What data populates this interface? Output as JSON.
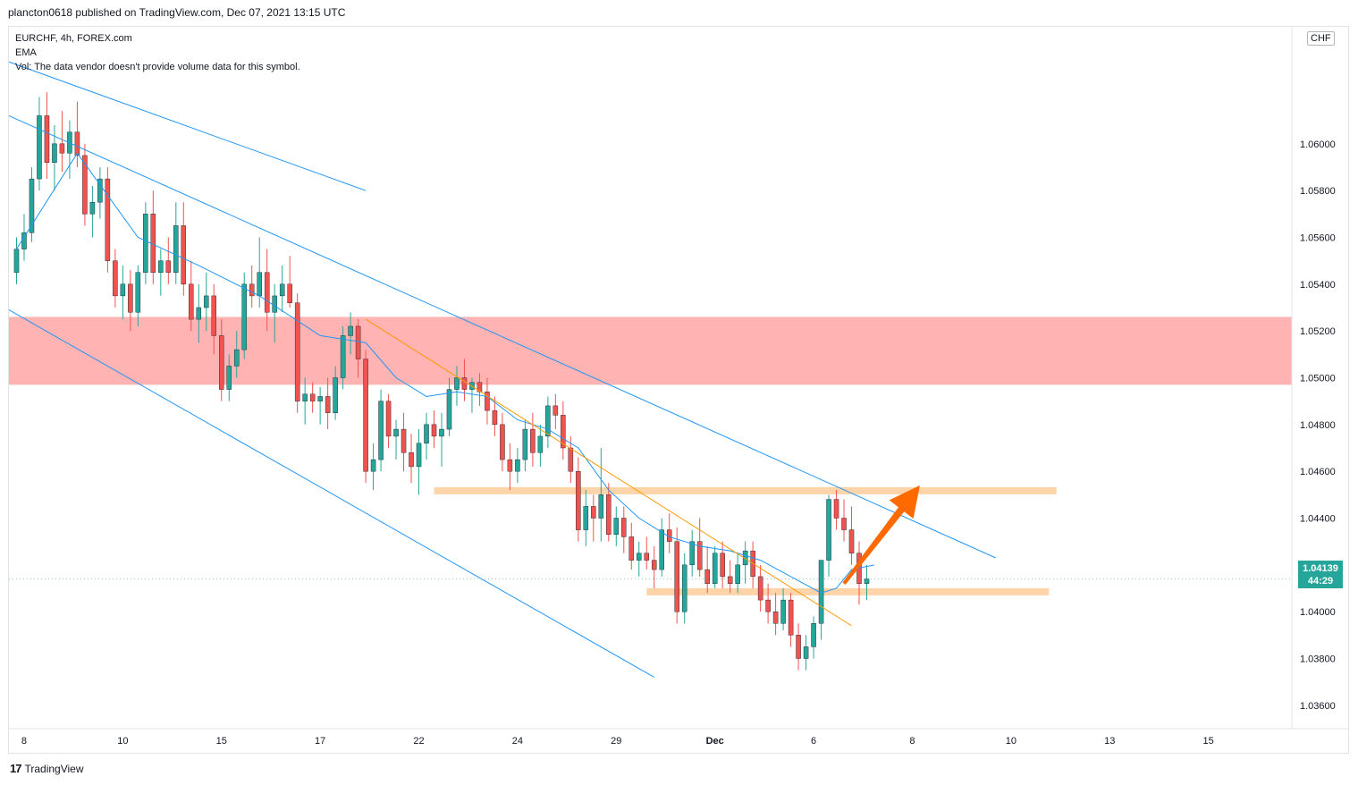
{
  "header": {
    "publisher_line": "plancton0618 published on TradingView.com, Dec 07, 2021 13:15 UTC"
  },
  "legend": {
    "symbol_line": "EURCHF, 4h, FOREX.com",
    "ema_label": "EMA",
    "vol_line": "Vol: The data vendor doesn't provide volume data for this symbol."
  },
  "currency_badge": "CHF",
  "last_price": {
    "value": "1.04139",
    "countdown": "44:29"
  },
  "brand": {
    "logo": "17",
    "name": "TradingView"
  },
  "colors": {
    "up": "#26a69a",
    "down": "#ef5350",
    "ema": "#2196f3",
    "zone": "#ffb3b3",
    "level": "#ffcc99",
    "arrow": "#ff6a00"
  },
  "chart_data": {
    "type": "candlestick",
    "title": "EURCHF, 4h, FOREX.com",
    "ylim": [
      1.035,
      1.065
    ],
    "y_ticks": [
      "1.03600",
      "1.03800",
      "1.04000",
      "1.04200",
      "1.04400",
      "1.04600",
      "1.04800",
      "1.05000",
      "1.05200",
      "1.05400",
      "1.05600",
      "1.05800",
      "1.06000"
    ],
    "x_ticks": [
      {
        "label": "8",
        "index": 1
      },
      {
        "label": "10",
        "index": 14
      },
      {
        "label": "15",
        "index": 27
      },
      {
        "label": "17",
        "index": 40
      },
      {
        "label": "22",
        "index": 53
      },
      {
        "label": "24",
        "index": 66
      },
      {
        "label": "29",
        "index": 79
      },
      {
        "label": "Dec",
        "index": 92
      },
      {
        "label": "6",
        "index": 105
      },
      {
        "label": "8",
        "index": 118
      },
      {
        "label": "10",
        "index": 131
      },
      {
        "label": "13",
        "index": 144
      },
      {
        "label": "15",
        "index": 157
      }
    ],
    "index_range": [
      -1,
      168
    ],
    "candles": [
      [
        1.0545,
        1.056,
        1.054,
        1.0555
      ],
      [
        1.0555,
        1.057,
        1.055,
        1.0562
      ],
      [
        1.0562,
        1.059,
        1.0558,
        1.0585
      ],
      [
        1.0585,
        1.062,
        1.058,
        1.0612
      ],
      [
        1.0612,
        1.0622,
        1.0585,
        1.0592
      ],
      [
        1.0592,
        1.0608,
        1.058,
        1.06
      ],
      [
        1.06,
        1.0614,
        1.0588,
        1.0596
      ],
      [
        1.0596,
        1.061,
        1.0585,
        1.0605
      ],
      [
        1.0605,
        1.0618,
        1.059,
        1.0595
      ],
      [
        1.0595,
        1.06,
        1.0565,
        1.057
      ],
      [
        1.057,
        1.0582,
        1.056,
        1.0575
      ],
      [
        1.0575,
        1.059,
        1.0568,
        1.0585
      ],
      [
        1.0585,
        1.059,
        1.0545,
        1.055
      ],
      [
        1.055,
        1.0555,
        1.053,
        1.0535
      ],
      [
        1.0535,
        1.0548,
        1.0525,
        1.054
      ],
      [
        1.054,
        1.0546,
        1.052,
        1.0528
      ],
      [
        1.0528,
        1.0548,
        1.0522,
        1.0545
      ],
      [
        1.0545,
        1.0575,
        1.054,
        1.057
      ],
      [
        1.057,
        1.058,
        1.054,
        1.0545
      ],
      [
        1.0545,
        1.0555,
        1.0535,
        1.055
      ],
      [
        1.055,
        1.056,
        1.054,
        1.0545
      ],
      [
        1.0545,
        1.0575,
        1.054,
        1.0565
      ],
      [
        1.0565,
        1.0575,
        1.0535,
        1.054
      ],
      [
        1.054,
        1.055,
        1.052,
        1.0525
      ],
      [
        1.0525,
        1.054,
        1.0515,
        1.053
      ],
      [
        1.053,
        1.0545,
        1.052,
        1.0535
      ],
      [
        1.0535,
        1.054,
        1.051,
        1.0518
      ],
      [
        1.0518,
        1.0525,
        1.049,
        1.0495
      ],
      [
        1.0495,
        1.051,
        1.049,
        1.0505
      ],
      [
        1.0505,
        1.052,
        1.05,
        1.0512
      ],
      [
        1.0512,
        1.0545,
        1.0508,
        1.054
      ],
      [
        1.054,
        1.0548,
        1.053,
        1.0535
      ],
      [
        1.0535,
        1.056,
        1.053,
        1.0545
      ],
      [
        1.0545,
        1.0555,
        1.052,
        1.0528
      ],
      [
        1.0528,
        1.054,
        1.0515,
        1.0535
      ],
      [
        1.0535,
        1.0548,
        1.0528,
        1.054
      ],
      [
        1.054,
        1.0552,
        1.053,
        1.0532
      ],
      [
        1.0532,
        1.0536,
        1.0485,
        1.049
      ],
      [
        1.049,
        1.05,
        1.048,
        1.0493
      ],
      [
        1.0493,
        1.0498,
        1.0485,
        1.049
      ],
      [
        1.049,
        1.0496,
        1.048,
        1.0492
      ],
      [
        1.0492,
        1.05,
        1.0478,
        1.0485
      ],
      [
        1.0485,
        1.0505,
        1.0482,
        1.05
      ],
      [
        1.05,
        1.0522,
        1.0495,
        1.0518
      ],
      [
        1.0518,
        1.0528,
        1.051,
        1.0522
      ],
      [
        1.0522,
        1.0525,
        1.05,
        1.0508
      ],
      [
        1.0508,
        1.0512,
        1.0455,
        1.046
      ],
      [
        1.046,
        1.0472,
        1.0452,
        1.0465
      ],
      [
        1.0465,
        1.0495,
        1.046,
        1.049
      ],
      [
        1.049,
        1.0493,
        1.047,
        1.0475
      ],
      [
        1.0475,
        1.0482,
        1.0465,
        1.0478
      ],
      [
        1.0478,
        1.0485,
        1.046,
        1.0468
      ],
      [
        1.0468,
        1.0476,
        1.0455,
        1.0462
      ],
      [
        1.0462,
        1.0478,
        1.045,
        1.0472
      ],
      [
        1.0472,
        1.0485,
        1.0465,
        1.048
      ],
      [
        1.048,
        1.0486,
        1.047,
        1.0475
      ],
      [
        1.0475,
        1.0485,
        1.0462,
        1.0478
      ],
      [
        1.0478,
        1.05,
        1.0475,
        1.0495
      ],
      [
        1.0495,
        1.0505,
        1.0488,
        1.05
      ],
      [
        1.05,
        1.0508,
        1.049,
        1.0495
      ],
      [
        1.0495,
        1.05,
        1.0485,
        1.0498
      ],
      [
        1.0498,
        1.0502,
        1.0488,
        1.0494
      ],
      [
        1.0494,
        1.05,
        1.048,
        1.0486
      ],
      [
        1.0486,
        1.0492,
        1.0475,
        1.048
      ],
      [
        1.048,
        1.0485,
        1.046,
        1.0465
      ],
      [
        1.0465,
        1.0472,
        1.0452,
        1.046
      ],
      [
        1.046,
        1.047,
        1.0455,
        1.0465
      ],
      [
        1.0465,
        1.0482,
        1.046,
        1.0478
      ],
      [
        1.0478,
        1.0485,
        1.0462,
        1.0468
      ],
      [
        1.0468,
        1.048,
        1.0462,
        1.0475
      ],
      [
        1.0475,
        1.0492,
        1.047,
        1.0488
      ],
      [
        1.0488,
        1.0493,
        1.0478,
        1.0484
      ],
      [
        1.0484,
        1.049,
        1.0465,
        1.047
      ],
      [
        1.047,
        1.0475,
        1.0455,
        1.046
      ],
      [
        1.046,
        1.0466,
        1.043,
        1.0435
      ],
      [
        1.0435,
        1.0452,
        1.0428,
        1.0445
      ],
      [
        1.0445,
        1.045,
        1.043,
        1.044
      ],
      [
        1.044,
        1.047,
        1.043,
        1.045
      ],
      [
        1.045,
        1.0455,
        1.043,
        1.0433
      ],
      [
        1.0433,
        1.0445,
        1.0428,
        1.044
      ],
      [
        1.044,
        1.0445,
        1.0425,
        1.0432
      ],
      [
        1.0432,
        1.0438,
        1.0418,
        1.0422
      ],
      [
        1.0422,
        1.043,
        1.0415,
        1.0425
      ],
      [
        1.0425,
        1.0432,
        1.0418,
        1.0422
      ],
      [
        1.0422,
        1.0428,
        1.041,
        1.0418
      ],
      [
        1.0418,
        1.044,
        1.0415,
        1.0435
      ],
      [
        1.0435,
        1.0442,
        1.0425,
        1.043
      ],
      [
        1.043,
        1.0436,
        1.0395,
        1.04
      ],
      [
        1.04,
        1.0425,
        1.0395,
        1.042
      ],
      [
        1.042,
        1.0435,
        1.0415,
        1.043
      ],
      [
        1.043,
        1.044,
        1.0415,
        1.0418
      ],
      [
        1.0418,
        1.0428,
        1.0408,
        1.0412
      ],
      [
        1.0412,
        1.0428,
        1.041,
        1.0425
      ],
      [
        1.0425,
        1.043,
        1.041,
        1.0415
      ],
      [
        1.0415,
        1.0422,
        1.0408,
        1.0412
      ],
      [
        1.0412,
        1.0425,
        1.0408,
        1.042
      ],
      [
        1.042,
        1.043,
        1.0412,
        1.0426
      ],
      [
        1.0426,
        1.043,
        1.041,
        1.0415
      ],
      [
        1.0415,
        1.042,
        1.04,
        1.0405
      ],
      [
        1.0405,
        1.0412,
        1.0395,
        1.04
      ],
      [
        1.04,
        1.0408,
        1.039,
        1.0395
      ],
      [
        1.0395,
        1.041,
        1.0392,
        1.0405
      ],
      [
        1.0405,
        1.0408,
        1.0385,
        1.039
      ],
      [
        1.039,
        1.0395,
        1.0375,
        1.038
      ],
      [
        1.038,
        1.039,
        1.0375,
        1.0385
      ],
      [
        1.0385,
        1.0398,
        1.038,
        1.0395
      ],
      [
        1.0395,
        1.042,
        1.0388,
        1.0422
      ],
      [
        1.0422,
        1.045,
        1.0415,
        1.0448
      ],
      [
        1.0448,
        1.0452,
        1.0435,
        1.044
      ],
      [
        1.044,
        1.0448,
        1.043,
        1.0435
      ],
      [
        1.0435,
        1.0445,
        1.042,
        1.0425
      ],
      [
        1.0425,
        1.043,
        1.0403,
        1.0412
      ],
      [
        1.0412,
        1.042,
        1.0405,
        1.0414
      ]
    ],
    "ema": [
      [
        0,
        1.0555
      ],
      [
        8,
        1.0596
      ],
      [
        16,
        1.056
      ],
      [
        24,
        1.0548
      ],
      [
        32,
        1.0535
      ],
      [
        40,
        1.0518
      ],
      [
        46,
        1.0515
      ],
      [
        50,
        1.05
      ],
      [
        54,
        1.0492
      ],
      [
        58,
        1.0494
      ],
      [
        62,
        1.0492
      ],
      [
        66,
        1.0482
      ],
      [
        70,
        1.0478
      ],
      [
        74,
        1.047
      ],
      [
        78,
        1.0452
      ],
      [
        82,
        1.044
      ],
      [
        86,
        1.0432
      ],
      [
        90,
        1.0428
      ],
      [
        94,
        1.0426
      ],
      [
        98,
        1.0422
      ],
      [
        102,
        1.0415
      ],
      [
        106,
        1.0408
      ],
      [
        108,
        1.041
      ],
      [
        110,
        1.0418
      ],
      [
        113,
        1.042
      ]
    ],
    "channel_lines": [
      {
        "from": [
          -1,
          1.0635
        ],
        "to": [
          46,
          1.058
        ],
        "color": "#2196f3"
      },
      {
        "from": [
          -1,
          1.0612
        ],
        "to": [
          129,
          1.0423
        ],
        "color": "#2196f3"
      },
      {
        "from": [
          -1,
          1.0529
        ],
        "to": [
          84,
          1.0372
        ],
        "color": "#2196f3"
      }
    ],
    "trend_line": {
      "from": [
        46,
        1.0525
      ],
      "to": [
        110,
        1.0394
      ],
      "color": "#ff9800"
    },
    "resistance_zone": {
      "y_low": 1.0497,
      "y_high": 1.0526
    },
    "levels": [
      {
        "index_from": 55,
        "index_to": 137,
        "y": 1.04517
      },
      {
        "index_from": 83,
        "index_to": 136,
        "y": 1.04085
      }
    ],
    "projection_arrow": {
      "from": [
        109,
        1.0412
      ],
      "to": [
        119,
        1.0454
      ]
    }
  }
}
